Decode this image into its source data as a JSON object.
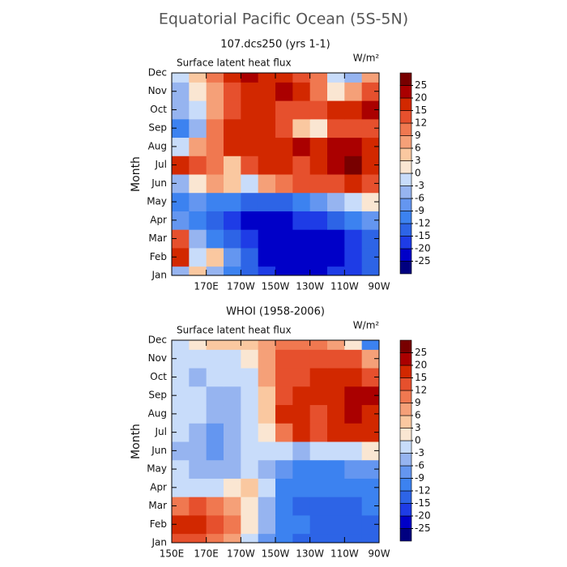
{
  "chart_data": [
    {
      "type": "heatmap",
      "title": "Equatorial Pacific Ocean (5S-5N)",
      "subtitle": "107.dcs250 (yrs 1-1)",
      "panel_label": "Surface latent heat flux",
      "units": "W/m²",
      "y_label": "Month",
      "x": [
        155,
        165,
        175,
        185,
        195,
        205,
        215,
        225,
        235,
        245,
        255,
        265
      ],
      "categories": [
        "Jan",
        "Feb",
        "Mar",
        "Apr",
        "May",
        "Jun",
        "Jul",
        "Aug",
        "Sep",
        "Oct",
        "Nov",
        "Dec"
      ],
      "xlim": [
        150,
        270
      ],
      "xticks": [
        {
          "value": 170,
          "label": "170E"
        },
        {
          "value": 190,
          "label": "170W"
        },
        {
          "value": 210,
          "label": "150W"
        },
        {
          "value": 230,
          "label": "130W"
        },
        {
          "value": 250,
          "label": "110W"
        },
        {
          "value": 270,
          "label": "90W"
        }
      ],
      "z": [
        [
          -6,
          3,
          -6,
          -12,
          -15,
          -20,
          -25,
          -25,
          -25,
          -20,
          -20,
          -15
        ],
        [
          15,
          -3,
          3,
          -9,
          -15,
          -25,
          -25,
          -25,
          -25,
          -25,
          -20,
          -15
        ],
        [
          12,
          -6,
          -12,
          -15,
          -20,
          -25,
          -25,
          -25,
          -25,
          -25,
          -20,
          -15
        ],
        [
          -9,
          -12,
          -15,
          -20,
          -25,
          -25,
          -25,
          -20,
          -20,
          -15,
          -12,
          -9
        ],
        [
          -12,
          -9,
          -12,
          -12,
          -15,
          -15,
          -15,
          -12,
          -9,
          -6,
          -3,
          0
        ],
        [
          -6,
          0,
          6,
          3,
          -3,
          6,
          9,
          12,
          12,
          12,
          15,
          12
        ],
        [
          15,
          12,
          9,
          3,
          12,
          15,
          15,
          12,
          15,
          20,
          25,
          15
        ],
        [
          -3,
          6,
          9,
          15,
          15,
          15,
          15,
          20,
          15,
          20,
          20,
          15
        ],
        [
          -12,
          -6,
          9,
          15,
          15,
          15,
          12,
          3,
          0,
          12,
          12,
          12
        ],
        [
          -6,
          -3,
          6,
          12,
          15,
          15,
          12,
          12,
          12,
          15,
          15,
          20
        ],
        [
          -6,
          0,
          6,
          12,
          15,
          15,
          20,
          15,
          9,
          0,
          6,
          12
        ],
        [
          -3,
          3,
          9,
          15,
          20,
          15,
          15,
          12,
          9,
          -3,
          -6,
          6
        ]
      ],
      "levels": [
        -25,
        -20,
        -15,
        -12,
        -9,
        -6,
        -3,
        0,
        3,
        6,
        9,
        12,
        15,
        20,
        25
      ],
      "colors": [
        "#000080",
        "#0000c8",
        "#1e3ce6",
        "#2d64e6",
        "#3c82f0",
        "#6496f0",
        "#96b4f0",
        "#c8dcfa",
        "#fae6d2",
        "#fac8a0",
        "#f5a078",
        "#f07850",
        "#e6502d",
        "#d22800",
        "#aa0000",
        "#780000"
      ]
    },
    {
      "type": "heatmap",
      "subtitle": "WHOI (1958-2006)",
      "panel_label": "Surface latent heat flux",
      "units": "W/m²",
      "y_label": "Month",
      "x": [
        155,
        165,
        175,
        185,
        195,
        205,
        215,
        225,
        235,
        245,
        255,
        265
      ],
      "categories": [
        "Jan",
        "Feb",
        "Mar",
        "Apr",
        "May",
        "Jun",
        "Jul",
        "Aug",
        "Sep",
        "Oct",
        "Nov",
        "Dec"
      ],
      "xlim": [
        150,
        270
      ],
      "xticks": [
        {
          "value": 150,
          "label": "150E"
        },
        {
          "value": 170,
          "label": "170E"
        },
        {
          "value": 190,
          "label": "170W"
        },
        {
          "value": 210,
          "label": "150W"
        },
        {
          "value": 230,
          "label": "130W"
        },
        {
          "value": 250,
          "label": "110W"
        },
        {
          "value": 270,
          "label": "90W"
        }
      ],
      "z": [
        [
          12,
          12,
          9,
          6,
          -3,
          -9,
          -12,
          -15,
          -15,
          -15,
          -15,
          -15
        ],
        [
          15,
          15,
          12,
          9,
          0,
          -6,
          -12,
          -12,
          -15,
          -15,
          -15,
          -15
        ],
        [
          9,
          12,
          9,
          6,
          0,
          -6,
          -12,
          -15,
          -15,
          -15,
          -15,
          -12
        ],
        [
          -3,
          -3,
          -3,
          0,
          3,
          -3,
          -12,
          -12,
          -12,
          -12,
          -12,
          -12
        ],
        [
          -3,
          -6,
          -6,
          -6,
          -3,
          -6,
          -9,
          -12,
          -12,
          -12,
          -9,
          -9
        ],
        [
          -6,
          -6,
          -9,
          -6,
          -3,
          -3,
          -3,
          -6,
          -3,
          -3,
          -3,
          0
        ],
        [
          -3,
          -6,
          -9,
          -6,
          -3,
          0,
          9,
          15,
          12,
          15,
          15,
          15
        ],
        [
          -3,
          -3,
          -6,
          -6,
          -3,
          3,
          15,
          15,
          12,
          15,
          20,
          15
        ],
        [
          -3,
          -3,
          -6,
          -6,
          -3,
          3,
          12,
          15,
          15,
          15,
          20,
          20
        ],
        [
          -3,
          -6,
          -3,
          -3,
          -3,
          6,
          12,
          12,
          15,
          15,
          15,
          12
        ],
        [
          -3,
          -3,
          -3,
          -3,
          0,
          6,
          12,
          12,
          12,
          12,
          12,
          6
        ],
        [
          -3,
          0,
          3,
          3,
          3,
          6,
          9,
          9,
          9,
          6,
          0,
          -12
        ]
      ],
      "levels": [
        -25,
        -20,
        -15,
        -12,
        -9,
        -6,
        -3,
        0,
        3,
        6,
        9,
        12,
        15,
        20,
        25
      ],
      "colors": [
        "#000080",
        "#0000c8",
        "#1e3ce6",
        "#2d64e6",
        "#3c82f0",
        "#6496f0",
        "#96b4f0",
        "#c8dcfa",
        "#fae6d2",
        "#fac8a0",
        "#f5a078",
        "#f07850",
        "#e6502d",
        "#d22800",
        "#aa0000",
        "#780000"
      ]
    }
  ]
}
